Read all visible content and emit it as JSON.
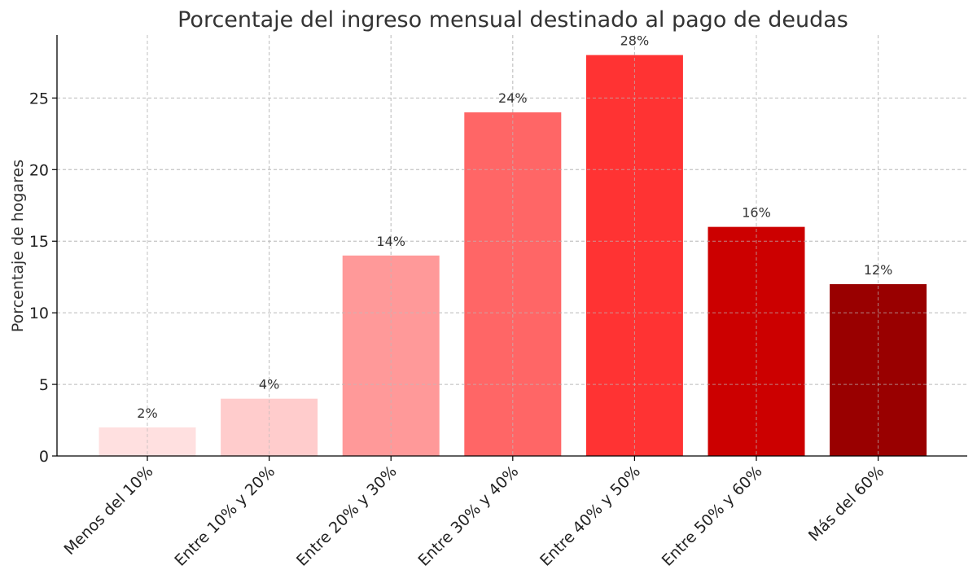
{
  "chart_data": {
    "type": "bar",
    "title": "Porcentaje del ingreso mensual destinado al pago de deudas",
    "xlabel": "",
    "ylabel": "Porcentaje de hogares",
    "categories": [
      "Menos del 10%",
      "Entre 10% y 20%",
      "Entre 20% y 30%",
      "Entre 30% y 40%",
      "Entre 40% y 50%",
      "Entre 50% y 60%",
      "Más del 60%"
    ],
    "values": [
      2,
      4,
      14,
      24,
      28,
      16,
      12
    ],
    "data_labels": [
      "2%",
      "4%",
      "14%",
      "24%",
      "28%",
      "16%",
      "12%"
    ],
    "colors": [
      "#ffe0e0",
      "#ffcccc",
      "#ff9999",
      "#ff6666",
      "#ff3333",
      "#cc0000",
      "#990000"
    ],
    "yticks": [
      0,
      5,
      10,
      15,
      20,
      25
    ],
    "ylim": [
      0,
      29.4
    ],
    "grid": true,
    "legend": "none"
  }
}
